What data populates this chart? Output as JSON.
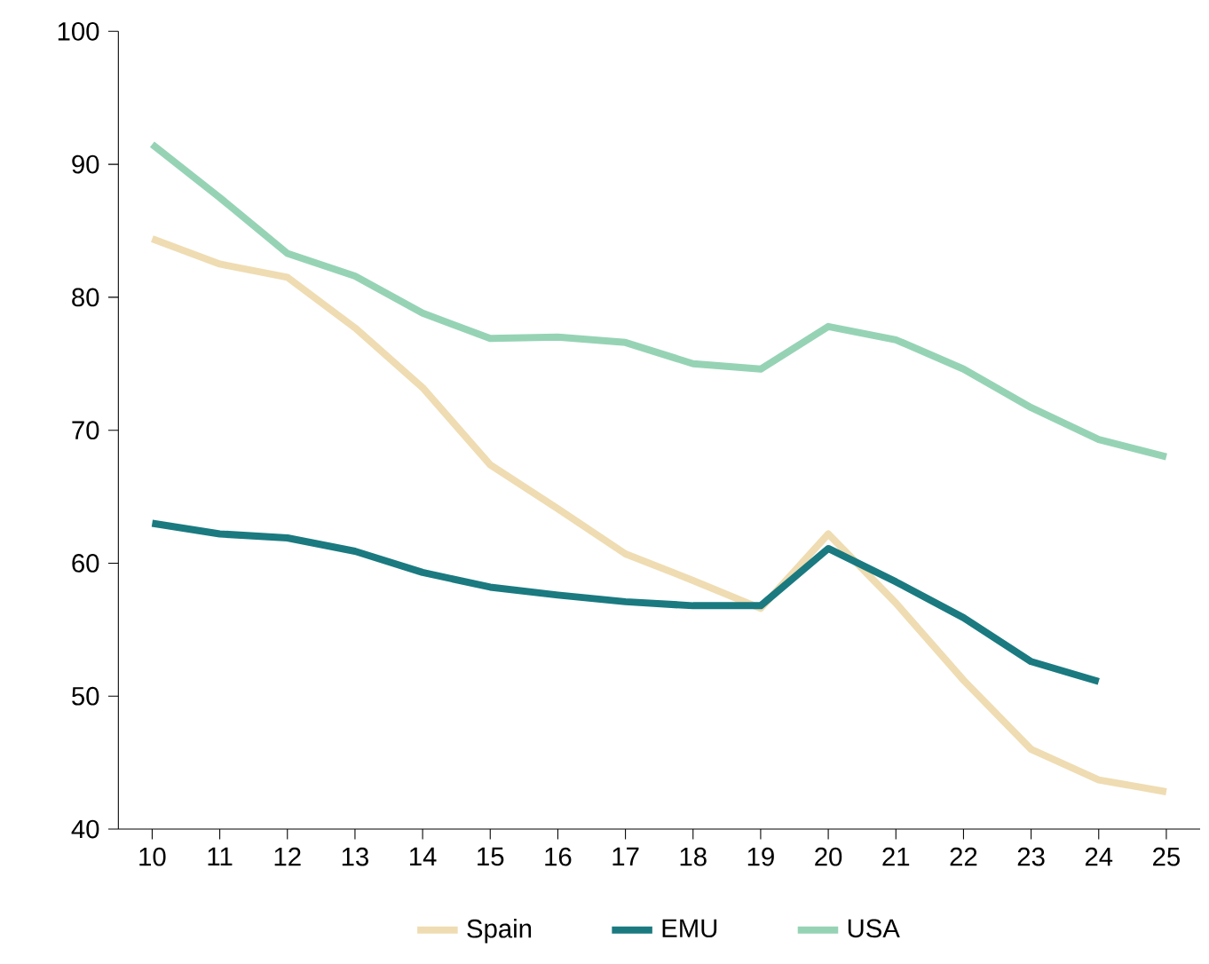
{
  "chart_data": {
    "type": "line",
    "categories": [
      "10",
      "11",
      "12",
      "13",
      "14",
      "15",
      "16",
      "17",
      "18",
      "19",
      "20",
      "21",
      "22",
      "23",
      "24",
      "25"
    ],
    "series": [
      {
        "name": "Spain",
        "color": "#efdcb2",
        "values": [
          84.4,
          82.5,
          81.5,
          77.7,
          73.2,
          67.4,
          64.1,
          60.7,
          58.7,
          56.6,
          62.2,
          57.0,
          51.2,
          46.0,
          43.7,
          42.8
        ]
      },
      {
        "name": "EMU",
        "color": "#1a7a80",
        "values": [
          63.0,
          62.2,
          61.9,
          60.9,
          59.3,
          58.2,
          57.6,
          57.1,
          56.8,
          56.8,
          61.1,
          58.6,
          55.9,
          52.6,
          51.1,
          null
        ]
      },
      {
        "name": "USA",
        "color": "#96d3b5",
        "values": [
          91.5,
          87.5,
          83.3,
          81.6,
          78.8,
          76.9,
          77.0,
          76.6,
          75.0,
          74.6,
          77.8,
          76.8,
          74.6,
          71.7,
          69.3,
          68.0
        ]
      }
    ],
    "ylim": [
      40,
      100
    ],
    "yticks": [
      40,
      50,
      60,
      70,
      80,
      90,
      100
    ],
    "grid": false,
    "legend": "bottom",
    "marker": "none",
    "line_style": "solid"
  }
}
